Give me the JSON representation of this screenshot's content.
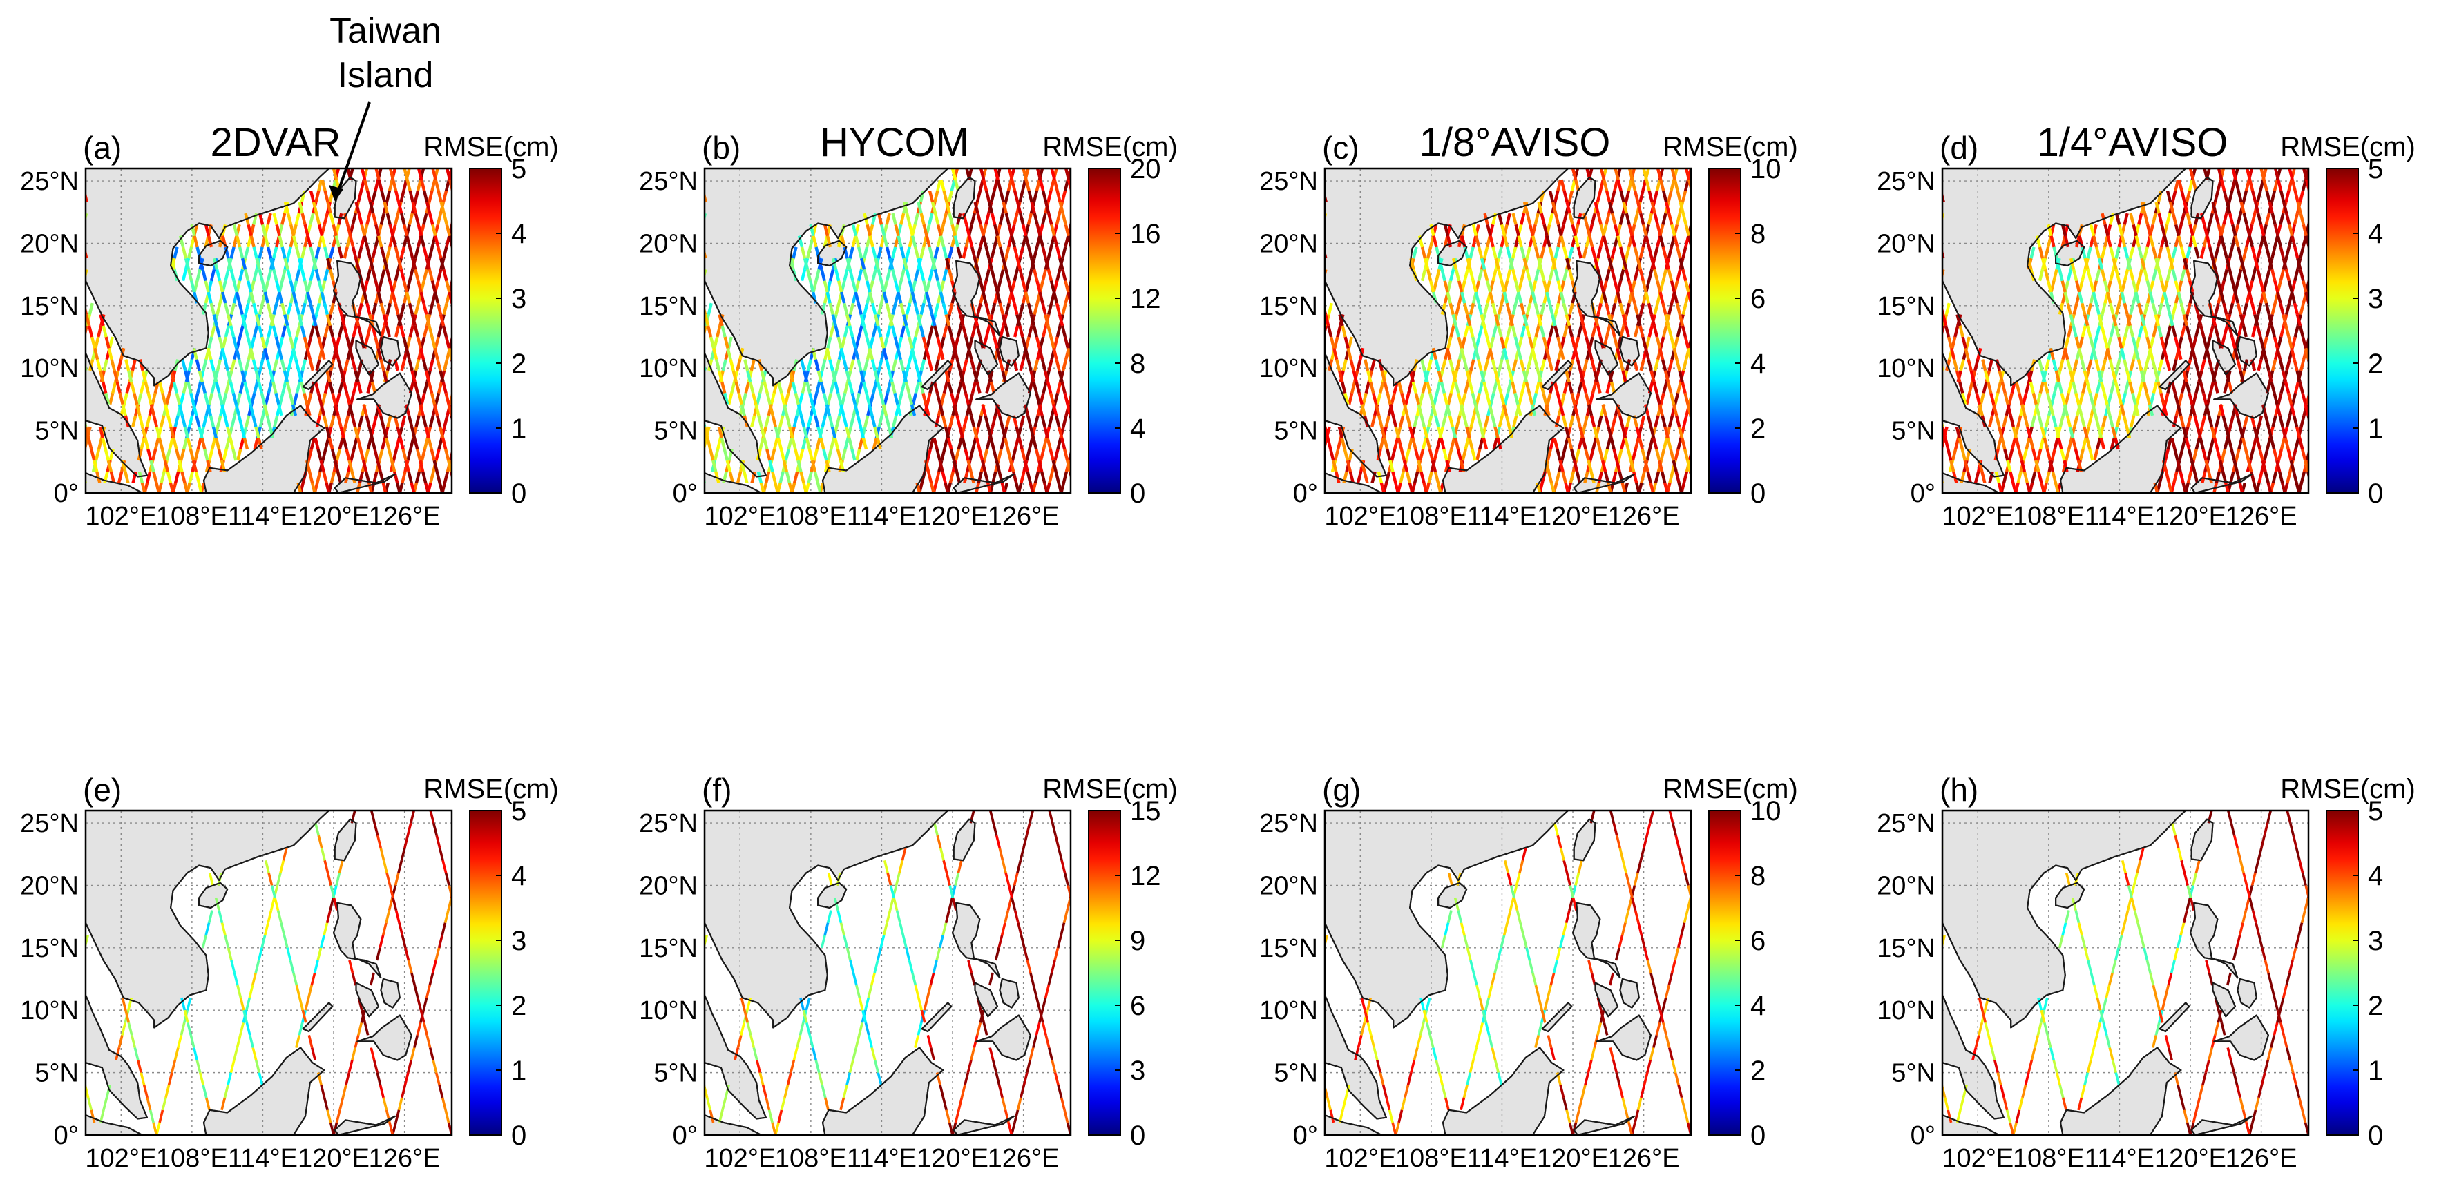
{
  "figure": {
    "annotation": {
      "line1": "Taiwan",
      "line2": "Island"
    },
    "colormap": "jet",
    "colors": {
      "land": "#e3e3e3",
      "coast": "#1a1a1a",
      "grid": "#8a8a8a",
      "frame": "#000000"
    }
  },
  "chart_data": [
    {
      "type": "map-tracks",
      "panel": "(a)",
      "title": "2DVAR",
      "colorbar_label": "RMSE(cm)",
      "clim": [
        0,
        5
      ],
      "ticks": [
        "0",
        "1",
        "2",
        "3",
        "4",
        "5"
      ],
      "track_set": "dense",
      "xlabel": "",
      "ylabel": "",
      "xlim": [
        99,
        130
      ],
      "ylim": [
        0,
        26
      ],
      "xticks": [
        102,
        108,
        114,
        120,
        126
      ],
      "xticklabels": [
        "102°E",
        "108°E",
        "114°E",
        "120°E",
        "126°E"
      ],
      "yticks": [
        0,
        5,
        10,
        15,
        20,
        25
      ],
      "yticklabels": [
        "0°",
        "5°N",
        "10°N",
        "15°N",
        "20°N",
        "25°N"
      ],
      "rmse_regions": {
        "scs_interior": 2.0,
        "scs_coastal": 3.5,
        "east_of_philippines": 4.5
      }
    },
    {
      "type": "map-tracks",
      "panel": "(b)",
      "title": "HYCOM",
      "colorbar_label": "RMSE(cm)",
      "clim": [
        0,
        20
      ],
      "ticks": [
        "0",
        "4",
        "8",
        "12",
        "16",
        "20"
      ],
      "track_set": "dense",
      "xlabel": "",
      "ylabel": "",
      "xlim": [
        99,
        130
      ],
      "ylim": [
        0,
        26
      ],
      "xticks": [
        102,
        108,
        114,
        120,
        126
      ],
      "xticklabels": [
        "102°E",
        "108°E",
        "114°E",
        "120°E",
        "126°E"
      ],
      "yticks": [
        0,
        5,
        10,
        15,
        20,
        25
      ],
      "yticklabels": [
        "0°",
        "5°N",
        "10°N",
        "15°N",
        "20°N",
        "25°N"
      ],
      "rmse_regions": {
        "scs_interior": 8.0,
        "scs_coastal": 12.0,
        "east_of_philippines": 19.0
      }
    },
    {
      "type": "map-tracks",
      "panel": "(c)",
      "title": "1/8°AVISO",
      "colorbar_label": "RMSE(cm)",
      "clim": [
        0,
        10
      ],
      "ticks": [
        "0",
        "2",
        "4",
        "6",
        "8",
        "10"
      ],
      "track_set": "dense",
      "xlabel": "",
      "ylabel": "",
      "xlim": [
        99,
        130
      ],
      "ylim": [
        0,
        26
      ],
      "xticks": [
        102,
        108,
        114,
        120,
        126
      ],
      "xticklabels": [
        "102°E",
        "108°E",
        "114°E",
        "120°E",
        "126°E"
      ],
      "yticks": [
        0,
        5,
        10,
        15,
        20,
        25
      ],
      "yticklabels": [
        "0°",
        "5°N",
        "10°N",
        "15°N",
        "20°N",
        "25°N"
      ],
      "rmse_regions": {
        "scs_interior": 6.0,
        "scs_coastal": 8.0,
        "east_of_philippines": 8.5
      }
    },
    {
      "type": "map-tracks",
      "panel": "(d)",
      "title": "1/4°AVISO",
      "colorbar_label": "RMSE(cm)",
      "clim": [
        0,
        5
      ],
      "ticks": [
        "0",
        "1",
        "2",
        "3",
        "4",
        "5"
      ],
      "track_set": "dense",
      "xlabel": "",
      "ylabel": "",
      "xlim": [
        99,
        130
      ],
      "ylim": [
        0,
        26
      ],
      "xticks": [
        102,
        108,
        114,
        120,
        126
      ],
      "xticklabels": [
        "102°E",
        "108°E",
        "114°E",
        "120°E",
        "126°E"
      ],
      "yticks": [
        0,
        5,
        10,
        15,
        20,
        25
      ],
      "yticklabels": [
        "0°",
        "5°N",
        "10°N",
        "15°N",
        "20°N",
        "25°N"
      ],
      "rmse_regions": {
        "scs_interior": 3.0,
        "scs_coastal": 4.0,
        "east_of_philippines": 4.8
      }
    },
    {
      "type": "map-tracks",
      "panel": "(e)",
      "title": "",
      "colorbar_label": "RMSE(cm)",
      "clim": [
        0,
        5
      ],
      "ticks": [
        "0",
        "1",
        "2",
        "3",
        "4",
        "5"
      ],
      "track_set": "sparse",
      "xlabel": "",
      "ylabel": "",
      "xlim": [
        99,
        130
      ],
      "ylim": [
        0,
        26
      ],
      "xticks": [
        102,
        108,
        114,
        120,
        126
      ],
      "xticklabels": [
        "102°E",
        "108°E",
        "114°E",
        "120°E",
        "126°E"
      ],
      "yticks": [
        0,
        5,
        10,
        15,
        20,
        25
      ],
      "yticklabels": [
        "0°",
        "5°N",
        "10°N",
        "15°N",
        "20°N",
        "25°N"
      ],
      "rmse_regions": {
        "scs_interior": 2.6,
        "scs_coastal": 3.2,
        "east_of_philippines": 4.4
      }
    },
    {
      "type": "map-tracks",
      "panel": "(f)",
      "title": "",
      "colorbar_label": "RMSE(cm)",
      "clim": [
        0,
        15
      ],
      "ticks": [
        "0",
        "3",
        "6",
        "9",
        "12",
        "15"
      ],
      "track_set": "sparse",
      "xlabel": "",
      "ylabel": "",
      "xlim": [
        99,
        130
      ],
      "ylim": [
        0,
        26
      ],
      "xticks": [
        102,
        108,
        114,
        120,
        126
      ],
      "xticklabels": [
        "102°E",
        "108°E",
        "114°E",
        "120°E",
        "126°E"
      ],
      "yticks": [
        0,
        5,
        10,
        15,
        20,
        25
      ],
      "yticklabels": [
        "0°",
        "5°N",
        "10°N",
        "15°N",
        "20°N",
        "25°N"
      ],
      "rmse_regions": {
        "scs_interior": 7.0,
        "scs_coastal": 10.0,
        "east_of_philippines": 14.0
      }
    },
    {
      "type": "map-tracks",
      "panel": "(g)",
      "title": "",
      "colorbar_label": "RMSE(cm)",
      "clim": [
        0,
        10
      ],
      "ticks": [
        "0",
        "2",
        "4",
        "6",
        "8",
        "10"
      ],
      "track_set": "sparse",
      "xlabel": "",
      "ylabel": "",
      "xlim": [
        99,
        130
      ],
      "ylim": [
        0,
        26
      ],
      "xticks": [
        102,
        108,
        114,
        120,
        126
      ],
      "xticklabels": [
        "102°E",
        "108°E",
        "114°E",
        "120°E",
        "126°E"
      ],
      "yticks": [
        0,
        5,
        10,
        15,
        20,
        25
      ],
      "yticklabels": [
        "0°",
        "5°N",
        "10°N",
        "15°N",
        "20°N",
        "25°N"
      ],
      "rmse_regions": {
        "scs_interior": 5.5,
        "scs_coastal": 7.5,
        "east_of_philippines": 8.5
      }
    },
    {
      "type": "map-tracks",
      "panel": "(h)",
      "title": "",
      "colorbar_label": "RMSE(cm)",
      "clim": [
        0,
        5
      ],
      "ticks": [
        "0",
        "1",
        "2",
        "3",
        "4",
        "5"
      ],
      "track_set": "sparse",
      "xlabel": "",
      "ylabel": "",
      "xlim": [
        99,
        130
      ],
      "ylim": [
        0,
        26
      ],
      "xticks": [
        102,
        108,
        114,
        120,
        126
      ],
      "xticklabels": [
        "102°E",
        "108°E",
        "114°E",
        "120°E",
        "126°E"
      ],
      "yticks": [
        0,
        5,
        10,
        15,
        20,
        25
      ],
      "yticklabels": [
        "0°",
        "5°N",
        "10°N",
        "15°N",
        "20°N",
        "25°N"
      ],
      "rmse_regions": {
        "scs_interior": 2.8,
        "scs_coastal": 3.6,
        "east_of_philippines": 4.6
      }
    }
  ]
}
